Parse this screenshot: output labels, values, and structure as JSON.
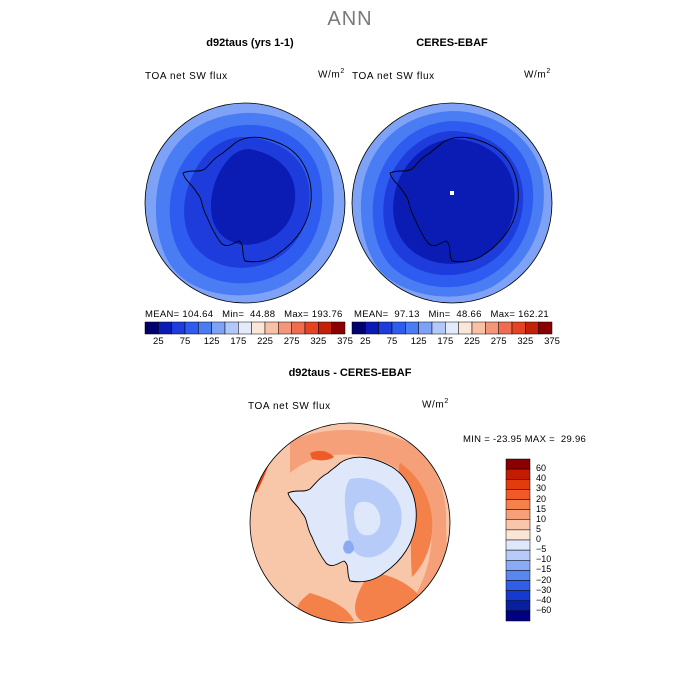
{
  "figure_title": "ANN",
  "panels": [
    {
      "title": "d92taus (yrs 1-1)",
      "variable": "TOA net SW flux",
      "units_base": "W/m",
      "units_exp": "2",
      "stats": {
        "mean": "104.64",
        "min": "44.88",
        "max": "193.76"
      },
      "stats_text": "MEAN= 104.64   Min=  44.88   Max= 193.76"
    },
    {
      "title": "CERES-EBAF",
      "variable": "TOA net SW flux",
      "units_base": "W/m",
      "units_exp": "2",
      "stats": {
        "mean": "97.13",
        "min": "48.66",
        "max": "162.21"
      },
      "stats_text": "MEAN=  97.13   Min=  48.66   Max= 162.21"
    },
    {
      "title": "d92taus - CERES-EBAF",
      "variable": "TOA net SW flux",
      "units_base": "W/m",
      "units_exp": "2",
      "stats": {
        "min": "-23.95",
        "max": "29.96"
      },
      "stats_text": "MIN = -23.95 MAX =  29.96"
    }
  ],
  "colorbar_main": {
    "labels": [
      "25",
      "75",
      "125",
      "175",
      "225",
      "275",
      "325",
      "375"
    ],
    "colors": [
      "#00006e",
      "#0a1cb4",
      "#1e3cdc",
      "#2e5cf0",
      "#4a7cf4",
      "#7ea2f6",
      "#b2c8fa",
      "#e2eafc",
      "#fce6d8",
      "#f8c0a4",
      "#f4967a",
      "#f06c4e",
      "#e44424",
      "#c42208",
      "#8a0000"
    ]
  },
  "colorbar_diff": {
    "labels": [
      "60",
      "40",
      "30",
      "20",
      "15",
      "10",
      "5",
      "0",
      "−5",
      "−10",
      "−15",
      "−20",
      "−30",
      "−40",
      "−60"
    ],
    "colors": [
      "#8a0000",
      "#c41c00",
      "#e23c0c",
      "#f05a28",
      "#f4804a",
      "#f6a07a",
      "#f8c6a8",
      "#fbe6d6",
      "#dfe8fb",
      "#b6cbf8",
      "#8aaaf4",
      "#5a86f0",
      "#2f5ee8",
      "#143ad0",
      "#0820a0",
      "#000080"
    ]
  },
  "chart_data": [
    {
      "type": "heatmap",
      "title": "d92taus (yrs 1-1)",
      "variable": "TOA net SW flux",
      "units": "W/m^2",
      "projection": "south polar stereographic",
      "mean": 104.64,
      "min": 44.88,
      "max": 193.76,
      "colorbar_levels": [
        25,
        50,
        75,
        100,
        125,
        150,
        175,
        200,
        225,
        250,
        275,
        300,
        325,
        350,
        375
      ],
      "colorbar_tick_labels": [
        25,
        75,
        125,
        175,
        225,
        275,
        325,
        375
      ]
    },
    {
      "type": "heatmap",
      "title": "CERES-EBAF",
      "variable": "TOA net SW flux",
      "units": "W/m^2",
      "projection": "south polar stereographic",
      "mean": 97.13,
      "min": 48.66,
      "max": 162.21,
      "colorbar_levels": [
        25,
        50,
        75,
        100,
        125,
        150,
        175,
        200,
        225,
        250,
        275,
        300,
        325,
        350,
        375
      ],
      "colorbar_tick_labels": [
        25,
        75,
        125,
        175,
        225,
        275,
        325,
        375
      ]
    },
    {
      "type": "heatmap",
      "title": "d92taus - CERES-EBAF",
      "variable": "TOA net SW flux",
      "units": "W/m^2",
      "projection": "south polar stereographic",
      "min": -23.95,
      "max": 29.96,
      "colorbar_levels": [
        -60,
        -40,
        -30,
        -20,
        -15,
        -10,
        -5,
        0,
        5,
        10,
        15,
        20,
        30,
        40,
        60
      ]
    }
  ]
}
